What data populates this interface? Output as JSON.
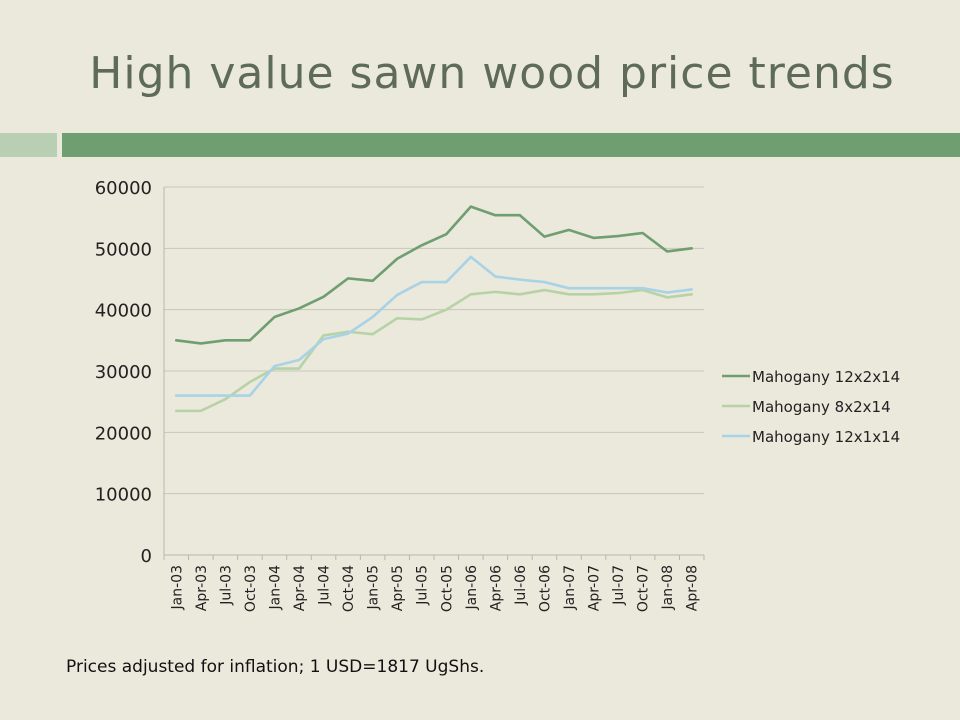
{
  "slide": {
    "title": "High value sawn wood price trends",
    "footnote": "Prices adjusted for inflation; 1 USD=1817 UgShs."
  },
  "chart_data": {
    "type": "line",
    "title": "",
    "xlabel": "",
    "ylabel": "",
    "ylim": [
      0,
      60000
    ],
    "yticks": [
      0,
      10000,
      20000,
      30000,
      40000,
      50000,
      60000
    ],
    "grid": true,
    "legend": "right",
    "categories": [
      "Jan-03",
      "Apr-03",
      "Jul-03",
      "Oct-03",
      "Jan-04",
      "Apr-04",
      "Jul-04",
      "Oct-04",
      "Jan-05",
      "Apr-05",
      "Jul-05",
      "Oct-05",
      "Jan-06",
      "Apr-06",
      "Jul-06",
      "Oct-06",
      "Jan-07",
      "Apr-07",
      "Jul-07",
      "Oct-07",
      "Jan-08",
      "Apr-08"
    ],
    "series": [
      {
        "name": "Mahogany 12x2x14",
        "color": "#6f9e71",
        "values": [
          35000,
          34500,
          35000,
          35000,
          38800,
          40200,
          42100,
          45100,
          44700,
          48300,
          50500,
          52300,
          56800,
          55400,
          55400,
          51900,
          53000,
          51700,
          52000,
          52500,
          49500,
          50000
        ]
      },
      {
        "name": "Mahogany 8x2x14",
        "color": "#b7d3a6",
        "values": [
          23500,
          23500,
          25400,
          28200,
          30400,
          30400,
          35800,
          36400,
          36000,
          38600,
          38400,
          40000,
          42500,
          42900,
          42500,
          43200,
          42500,
          42500,
          42700,
          43200,
          42000,
          42500
        ]
      },
      {
        "name": "Mahogany 12x1x14",
        "color": "#a8d3e6",
        "values": [
          26000,
          26000,
          26000,
          26000,
          30800,
          31800,
          35200,
          36100,
          38800,
          42400,
          44500,
          44500,
          48600,
          45400,
          44900,
          44500,
          43500,
          43500,
          43500,
          43500,
          42800,
          43300
        ]
      }
    ]
  }
}
